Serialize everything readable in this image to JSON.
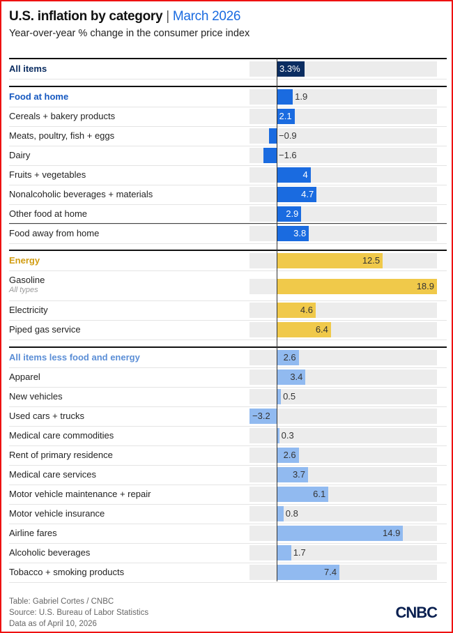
{
  "header": {
    "title": "U.S. inflation by category",
    "separator": "|",
    "date": "March 2026",
    "subtitle": "Year-over-year % change in the consumer price index"
  },
  "colors": {
    "all": "#0b2d61",
    "food": "#1a6be0",
    "energy": "#f0c94a",
    "core": "#91baf0",
    "food_label": "#1558c0",
    "energy_label": "#d19c10",
    "core_label": "#5b8ed6"
  },
  "chart_data": {
    "type": "bar",
    "title": "U.S. inflation by category | March 2026",
    "subtitle": "Year-over-year % change in the consumer price index",
    "unit": "%",
    "xlim": [
      -3.2,
      18.9
    ],
    "sections": [
      {
        "key": "all",
        "rows": [
          {
            "label": "All items",
            "value": 3.3,
            "display": "3.3%",
            "head": true
          }
        ]
      },
      {
        "key": "food",
        "rows": [
          {
            "label": "Food at home",
            "value": 1.9,
            "display": "1.9",
            "head": true
          },
          {
            "label": "Cereals + bakery products",
            "value": 2.1,
            "display": "2.1"
          },
          {
            "label": "Meats, poultry, fish + eggs",
            "value": -0.9,
            "display": "−0.9"
          },
          {
            "label": "Dairy",
            "value": -1.6,
            "display": "−1.6"
          },
          {
            "label": "Fruits + vegetables",
            "value": 4,
            "display": "4"
          },
          {
            "label": "Nonalcoholic beverages + materials",
            "value": 4.7,
            "display": "4.7"
          },
          {
            "label": "Other food at home",
            "value": 2.9,
            "display": "2.9"
          },
          {
            "label": "Food away from home",
            "value": 3.8,
            "display": "3.8",
            "topline": true
          }
        ]
      },
      {
        "key": "energy",
        "rows": [
          {
            "label": "Energy",
            "value": 12.5,
            "display": "12.5",
            "head": true
          },
          {
            "label": "Gasoline",
            "note": "All types",
            "value": 18.9,
            "display": "18.9"
          },
          {
            "label": "Electricity",
            "value": 4.6,
            "display": "4.6"
          },
          {
            "label": "Piped gas service",
            "value": 6.4,
            "display": "6.4"
          }
        ]
      },
      {
        "key": "core",
        "rows": [
          {
            "label": "All items less food and energy",
            "value": 2.6,
            "display": "2.6",
            "head": true
          },
          {
            "label": "Apparel",
            "value": 3.4,
            "display": "3.4"
          },
          {
            "label": "New vehicles",
            "value": 0.5,
            "display": "0.5"
          },
          {
            "label": "Used cars + trucks",
            "value": -3.2,
            "display": "−3.2"
          },
          {
            "label": "Medical care commodities",
            "value": 0.3,
            "display": "0.3"
          },
          {
            "label": "Rent of primary residence",
            "value": 2.6,
            "display": "2.6"
          },
          {
            "label": "Medical care services",
            "value": 3.7,
            "display": "3.7"
          },
          {
            "label": "Motor vehicle maintenance + repair",
            "value": 6.1,
            "display": "6.1"
          },
          {
            "label": "Motor vehicle insurance",
            "value": 0.8,
            "display": "0.8"
          },
          {
            "label": "Airline fares",
            "value": 14.9,
            "display": "14.9"
          },
          {
            "label": "Alcoholic beverages",
            "value": 1.7,
            "display": "1.7"
          },
          {
            "label": "Tobacco + smoking products",
            "value": 7.4,
            "display": "7.4"
          }
        ]
      }
    ]
  },
  "footer": {
    "credit": "Table: Gabriel Cortes / CNBC",
    "source": "Source: U.S. Bureau of Labor Statistics",
    "date": "Data as of April 10, 2026",
    "logo": "CNBC"
  }
}
